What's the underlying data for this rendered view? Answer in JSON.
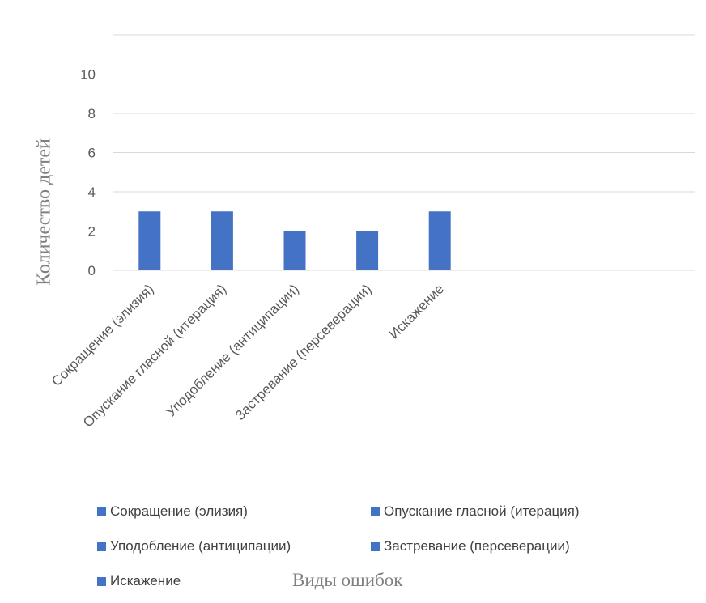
{
  "chart_data": {
    "type": "bar",
    "title": "",
    "xlabel": "Виды ошибок",
    "ylabel": "Количество детей",
    "categories": [
      "Сокращение (элизия)",
      "Опускание гласной (итерация)",
      "Уподобление (антиципации)",
      "Застревание (персеверации)",
      "Искажение"
    ],
    "values": [
      3,
      3,
      2,
      2,
      3
    ],
    "ylim": [
      0,
      12
    ],
    "yticks": [
      "0",
      "2",
      "4",
      "6",
      "8",
      "10"
    ],
    "grid": true,
    "legend_position": "bottom",
    "bar_color": "#4472c4",
    "grid_color": "#d9d9d9",
    "legend": [
      "Сокращение (элизия)",
      "Опускание гласной (итерация)",
      "Уподобление (антиципации)",
      "Застревание (персеверации)",
      "Искажение"
    ]
  }
}
